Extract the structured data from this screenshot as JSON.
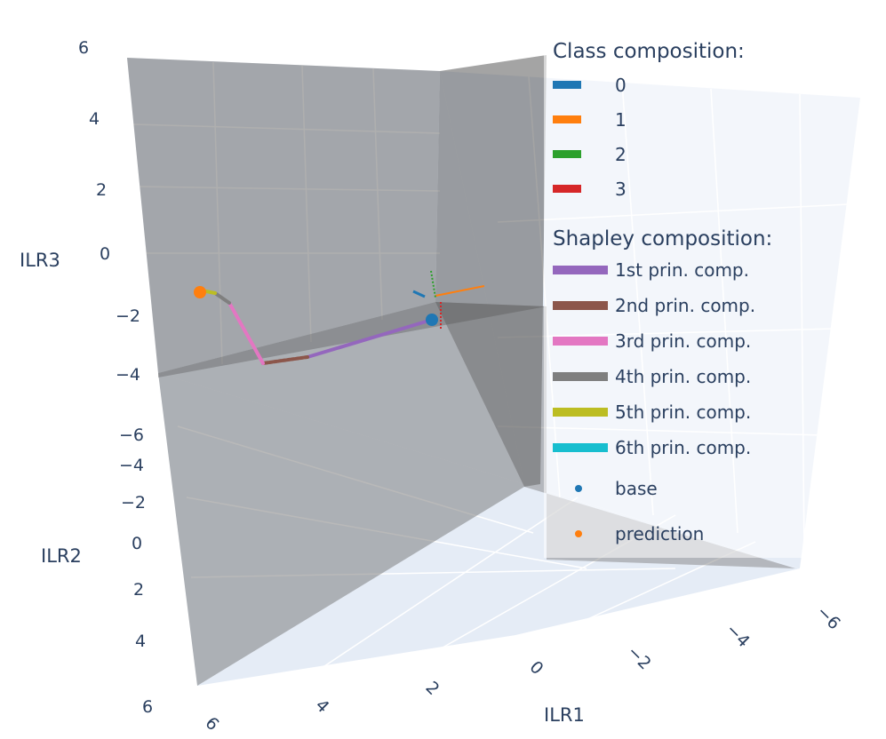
{
  "chart_data": {
    "type": "scatter3d",
    "axes": {
      "x": {
        "title": "ILR1",
        "range": [
          -6,
          6
        ],
        "ticks": [
          -6,
          -4,
          -2,
          0,
          2,
          4,
          6
        ]
      },
      "y": {
        "title": "ILR2",
        "range": [
          -6,
          6
        ],
        "ticks": [
          -6,
          -4,
          -2,
          0,
          2,
          4,
          6
        ]
      },
      "z": {
        "title": "ILR3",
        "range": [
          -4,
          6
        ],
        "ticks": [
          -4,
          -2,
          0,
          2,
          4,
          6
        ]
      }
    },
    "legend": {
      "placement": "top-right",
      "class_title": "Class composition:",
      "classes": [
        {
          "label": "0",
          "color": "#1f77b4"
        },
        {
          "label": "1",
          "color": "#ff7f0e"
        },
        {
          "label": "2",
          "color": "#2ca02c"
        },
        {
          "label": "3",
          "color": "#d62728"
        }
      ],
      "shapley_title": "Shapley composition:",
      "components": [
        {
          "label": "1st prin. comp.",
          "color": "#9467bd"
        },
        {
          "label": "2nd prin. comp.",
          "color": "#8c564b"
        },
        {
          "label": "3rd prin. comp.",
          "color": "#e377c2"
        },
        {
          "label": "4th prin. comp.",
          "color": "#7f7f7f"
        },
        {
          "label": "5th prin. comp.",
          "color": "#bcbd22"
        },
        {
          "label": "6th prin. comp.",
          "color": "#17becf"
        }
      ],
      "points": [
        {
          "label": "base",
          "color": "#1f77b4"
        },
        {
          "label": "prediction",
          "color": "#ff7f0e"
        }
      ]
    }
  }
}
